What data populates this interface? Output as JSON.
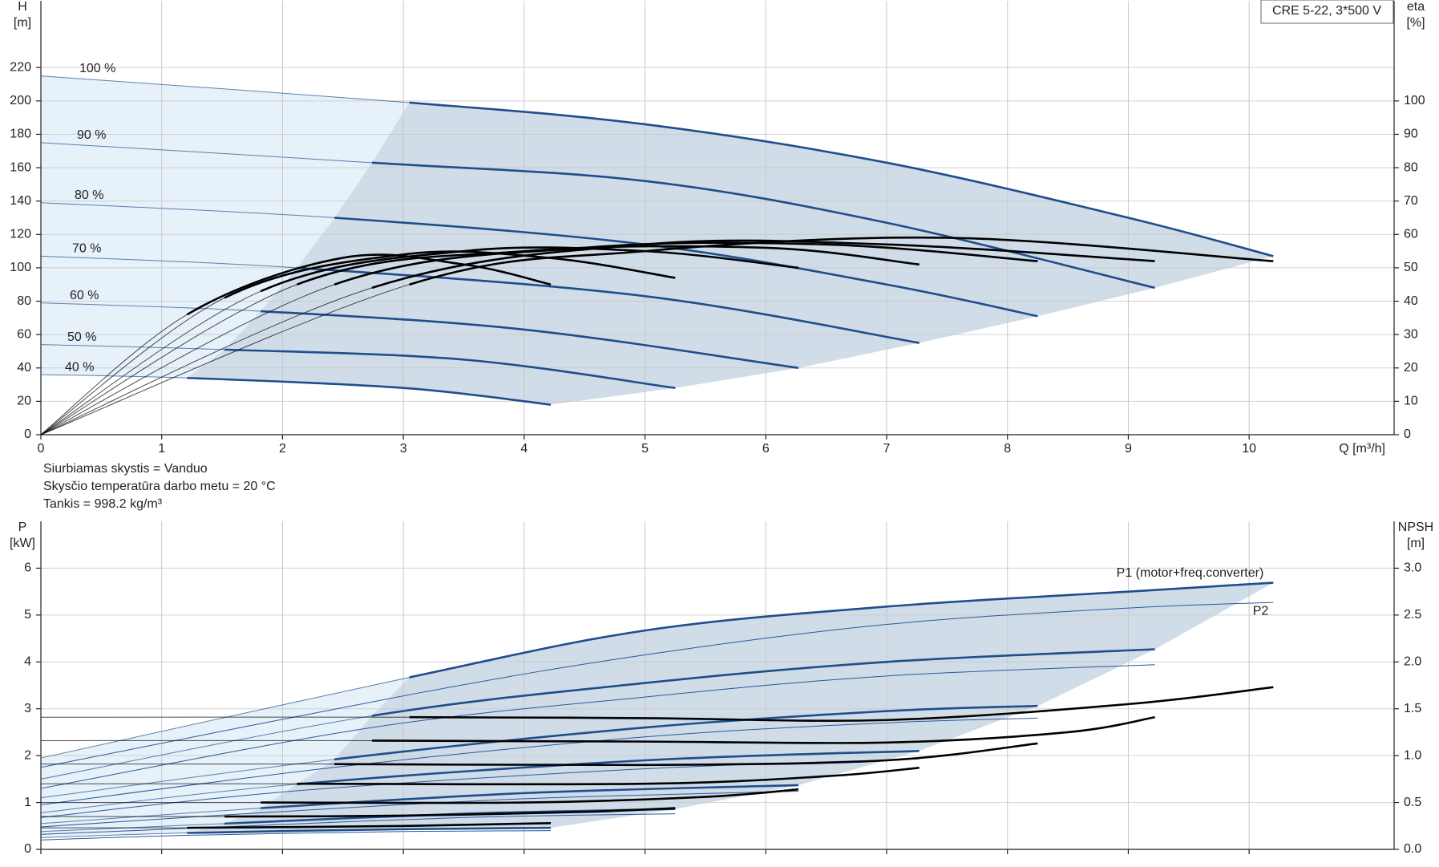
{
  "chart_data": [
    {
      "type": "line",
      "title": "CRE 5-22, 3*500 V",
      "x_label": "Q [m³/h]",
      "y_label": [
        "H",
        "[m]"
      ],
      "y2_label": [
        "eta",
        "[%]"
      ],
      "xlim": [
        0,
        11.2
      ],
      "xticks": [
        0,
        1,
        2,
        3,
        4,
        5,
        6,
        7,
        8,
        9,
        10
      ],
      "ylim": [
        0,
        260
      ],
      "yticks": [
        0,
        20,
        40,
        60,
        80,
        100,
        120,
        140,
        160,
        180,
        200,
        220
      ],
      "y2lim": [
        0,
        130
      ],
      "y2ticks": [
        0,
        10,
        20,
        30,
        40,
        50,
        60,
        70,
        80,
        90,
        100
      ],
      "grid": true,
      "show_xtick_labels": true,
      "series": [
        {
          "name": "100 %",
          "color": "#1f4e8c",
          "weight": "thick",
          "label_position": "above-start",
          "x": [
            0,
            3.05,
            5,
            7,
            9,
            10.2
          ],
          "values": [
            215,
            199,
            186,
            163,
            130,
            107
          ]
        },
        {
          "name": "90 %",
          "color": "#1f4e8c",
          "weight": "thick",
          "label_position": "above-start",
          "x": [
            0,
            2.74,
            5,
            7,
            9.22
          ],
          "values": [
            175,
            163,
            152,
            127,
            88
          ]
        },
        {
          "name": "80 %",
          "color": "#1f4e8c",
          "weight": "thick",
          "label_position": "above-start",
          "x": [
            0,
            2.43,
            5,
            7,
            8.25
          ],
          "values": [
            139,
            130,
            114,
            90,
            71
          ]
        },
        {
          "name": "70 %",
          "color": "#1f4e8c",
          "weight": "thick",
          "label_position": "above-start",
          "x": [
            0,
            2.12,
            5,
            7.27
          ],
          "values": [
            107,
            100,
            83,
            55
          ]
        },
        {
          "name": "60 %",
          "color": "#1f4e8c",
          "weight": "thick",
          "label_position": "above-start",
          "x": [
            0,
            1.82,
            4,
            6.27
          ],
          "values": [
            79,
            74,
            63,
            40
          ]
        },
        {
          "name": "50 %",
          "color": "#1f4e8c",
          "weight": "thick",
          "label_position": "above-start",
          "x": [
            0,
            1.52,
            3.5,
            5.25
          ],
          "values": [
            54,
            51,
            45,
            28
          ]
        },
        {
          "name": "40 %",
          "color": "#1f4e8c",
          "weight": "thick",
          "label_position": "above-start",
          "x": [
            0,
            1.21,
            3,
            4.22
          ],
          "values": [
            36,
            34,
            28,
            18
          ]
        },
        {
          "color": "#000000",
          "weight": "thick",
          "axis": "y2",
          "x": [
            0,
            3.05,
            5,
            7.5,
            10.2
          ],
          "values": [
            0,
            45,
            55,
            59,
            52
          ]
        },
        {
          "color": "#000000",
          "weight": "thick",
          "axis": "y2",
          "x": [
            0,
            2.74,
            5,
            7,
            9.22
          ],
          "values": [
            0,
            44,
            57,
            57,
            52
          ]
        },
        {
          "color": "#000000",
          "weight": "thick",
          "axis": "y2",
          "x": [
            0,
            2.43,
            4.5,
            6.5,
            8.25
          ],
          "values": [
            0,
            45,
            56,
            57,
            52
          ]
        },
        {
          "color": "#000000",
          "weight": "thick",
          "axis": "y2",
          "x": [
            0,
            2.12,
            4,
            6,
            7.27
          ],
          "values": [
            0,
            45,
            55,
            56,
            51
          ]
        },
        {
          "color": "#000000",
          "weight": "thick",
          "axis": "y2",
          "x": [
            0,
            1.82,
            3.5,
            5,
            6.27
          ],
          "values": [
            0,
            43,
            55,
            55,
            50
          ]
        },
        {
          "color": "#000000",
          "weight": "thick",
          "axis": "y2",
          "x": [
            0,
            1.52,
            3,
            4.2,
            5.25
          ],
          "values": [
            0,
            41,
            54,
            53,
            47
          ]
        },
        {
          "color": "#000000",
          "weight": "thick",
          "axis": "y2",
          "x": [
            0,
            1.21,
            2.5,
            3.5,
            4.22
          ],
          "values": [
            0,
            36,
            53,
            51,
            45
          ]
        }
      ]
    },
    {
      "type": "line",
      "y_label": [
        "P",
        "[kW]"
      ],
      "y2_label": [
        "NPSH",
        "[m]"
      ],
      "xlim": [
        0,
        11.2
      ],
      "xticks": [
        0,
        1,
        2,
        3,
        4,
        5,
        6,
        7,
        8,
        9,
        10
      ],
      "ylim": [
        0,
        7
      ],
      "yticks": [
        0,
        1,
        2,
        3,
        4,
        5,
        6
      ],
      "y2lim": [
        0,
        3.5
      ],
      "y2ticks": [
        {
          "value": 0,
          "label": "0.0"
        },
        {
          "value": 0.5,
          "label": "0.5"
        },
        {
          "value": 1,
          "label": "1.0"
        },
        {
          "value": 1.5,
          "label": "1.5"
        },
        {
          "value": 2,
          "label": "2.0"
        },
        {
          "value": 2.5,
          "label": "2.5"
        },
        {
          "value": 3,
          "label": "3.0"
        }
      ],
      "grid": true,
      "show_xtick_labels": false,
      "series": [
        {
          "name": "P1 (motor+freq.converter)",
          "color": "#1f4e8c",
          "weight": "thick",
          "label_position": "above-end",
          "x": [
            0,
            3.05,
            5,
            7,
            9,
            10.2
          ],
          "values": [
            1.95,
            3.67,
            4.67,
            5.18,
            5.5,
            5.69
          ]
        },
        {
          "color": "#1f4e8c",
          "weight": "thick",
          "x": [
            0,
            2.74,
            5,
            7,
            9.22
          ],
          "values": [
            1.5,
            2.85,
            3.55,
            4.0,
            4.27
          ]
        },
        {
          "color": "#1f4e8c",
          "weight": "thick",
          "x": [
            0,
            2.43,
            5,
            7,
            8.25
          ],
          "values": [
            1.1,
            1.92,
            2.6,
            2.95,
            3.06
          ]
        },
        {
          "color": "#1f4e8c",
          "weight": "thick",
          "x": [
            0,
            2.12,
            5,
            7.27
          ],
          "values": [
            0.78,
            1.39,
            1.9,
            2.1
          ]
        },
        {
          "color": "#1f4e8c",
          "weight": "thick",
          "x": [
            0,
            1.82,
            4,
            6.27
          ],
          "values": [
            0.55,
            0.88,
            1.2,
            1.37
          ]
        },
        {
          "color": "#1f4e8c",
          "weight": "thick",
          "x": [
            0,
            1.52,
            3.5,
            5.25
          ],
          "values": [
            0.38,
            0.55,
            0.76,
            0.86
          ]
        },
        {
          "color": "#1f4e8c",
          "weight": "thick",
          "x": [
            0,
            1.21,
            3,
            4.22
          ],
          "values": [
            0.25,
            0.35,
            0.43,
            0.46
          ]
        },
        {
          "name": "P2",
          "color": "#2a5a9a",
          "weight": "thin",
          "label_position": "below-end",
          "x": [
            0,
            3.05,
            5,
            7,
            9,
            10.2
          ],
          "values": [
            1.75,
            3.3,
            4.15,
            4.8,
            5.15,
            5.27
          ]
        },
        {
          "color": "#2a5a9a",
          "weight": "thin",
          "x": [
            0,
            2.74,
            5,
            7,
            9.22
          ],
          "values": [
            1.3,
            2.6,
            3.25,
            3.7,
            3.94
          ]
        },
        {
          "color": "#2a5a9a",
          "weight": "thin",
          "x": [
            0,
            2.43,
            5,
            7,
            8.25
          ],
          "values": [
            0.95,
            1.75,
            2.4,
            2.7,
            2.8
          ]
        },
        {
          "color": "#2a5a9a",
          "weight": "thin",
          "x": [
            0,
            2.12,
            5,
            7.27
          ],
          "values": [
            0.68,
            1.25,
            1.72,
            1.93
          ]
        },
        {
          "color": "#2a5a9a",
          "weight": "thin",
          "x": [
            0,
            1.82,
            4,
            6.27
          ],
          "values": [
            0.48,
            0.78,
            1.08,
            1.24
          ]
        },
        {
          "color": "#2a5a9a",
          "weight": "thin",
          "x": [
            0,
            1.52,
            3.5,
            5.25
          ],
          "values": [
            0.32,
            0.48,
            0.68,
            0.76
          ]
        },
        {
          "color": "#2a5a9a",
          "weight": "thin",
          "x": [
            0,
            1.21,
            3,
            4.22
          ],
          "values": [
            0.2,
            0.3,
            0.38,
            0.4
          ]
        },
        {
          "color": "#000000",
          "weight": "thick",
          "axis": "y2",
          "x": [
            0,
            3.05,
            5,
            7,
            9,
            10.2
          ],
          "values": [
            1.41,
            1.41,
            1.4,
            1.38,
            1.55,
            1.73
          ]
        },
        {
          "color": "#000000",
          "weight": "thick",
          "axis": "y2",
          "x": [
            0,
            2.74,
            5,
            7,
            8.5,
            9.22
          ],
          "values": [
            1.16,
            1.16,
            1.15,
            1.14,
            1.25,
            1.41
          ]
        },
        {
          "color": "#000000",
          "weight": "thick",
          "axis": "y2",
          "x": [
            0,
            2.43,
            5,
            7,
            8.25
          ],
          "values": [
            0.91,
            0.91,
            0.9,
            0.95,
            1.13
          ]
        },
        {
          "color": "#000000",
          "weight": "thick",
          "axis": "y2",
          "x": [
            0,
            2.12,
            5,
            6.5,
            7.27
          ],
          "values": [
            0.7,
            0.7,
            0.7,
            0.78,
            0.87
          ]
        },
        {
          "color": "#000000",
          "weight": "thick",
          "axis": "y2",
          "x": [
            0,
            1.82,
            4,
            5.5,
            6.27
          ],
          "values": [
            0.5,
            0.5,
            0.5,
            0.56,
            0.64
          ]
        },
        {
          "color": "#000000",
          "weight": "thick",
          "axis": "y2",
          "x": [
            0,
            1.52,
            3,
            4.5,
            5.25
          ],
          "values": [
            0.35,
            0.35,
            0.36,
            0.4,
            0.44
          ]
        },
        {
          "color": "#000000",
          "weight": "thick",
          "axis": "y2",
          "x": [
            0,
            1.21,
            3,
            4.22
          ],
          "values": [
            0.23,
            0.23,
            0.25,
            0.28
          ]
        }
      ]
    }
  ],
  "fluid_info": [
    "Siurbiamas skystis = Vanduo",
    "Skysčio temperatūra darbo metu = 20 °C",
    "Tankis = 998.2 kg/m³"
  ]
}
